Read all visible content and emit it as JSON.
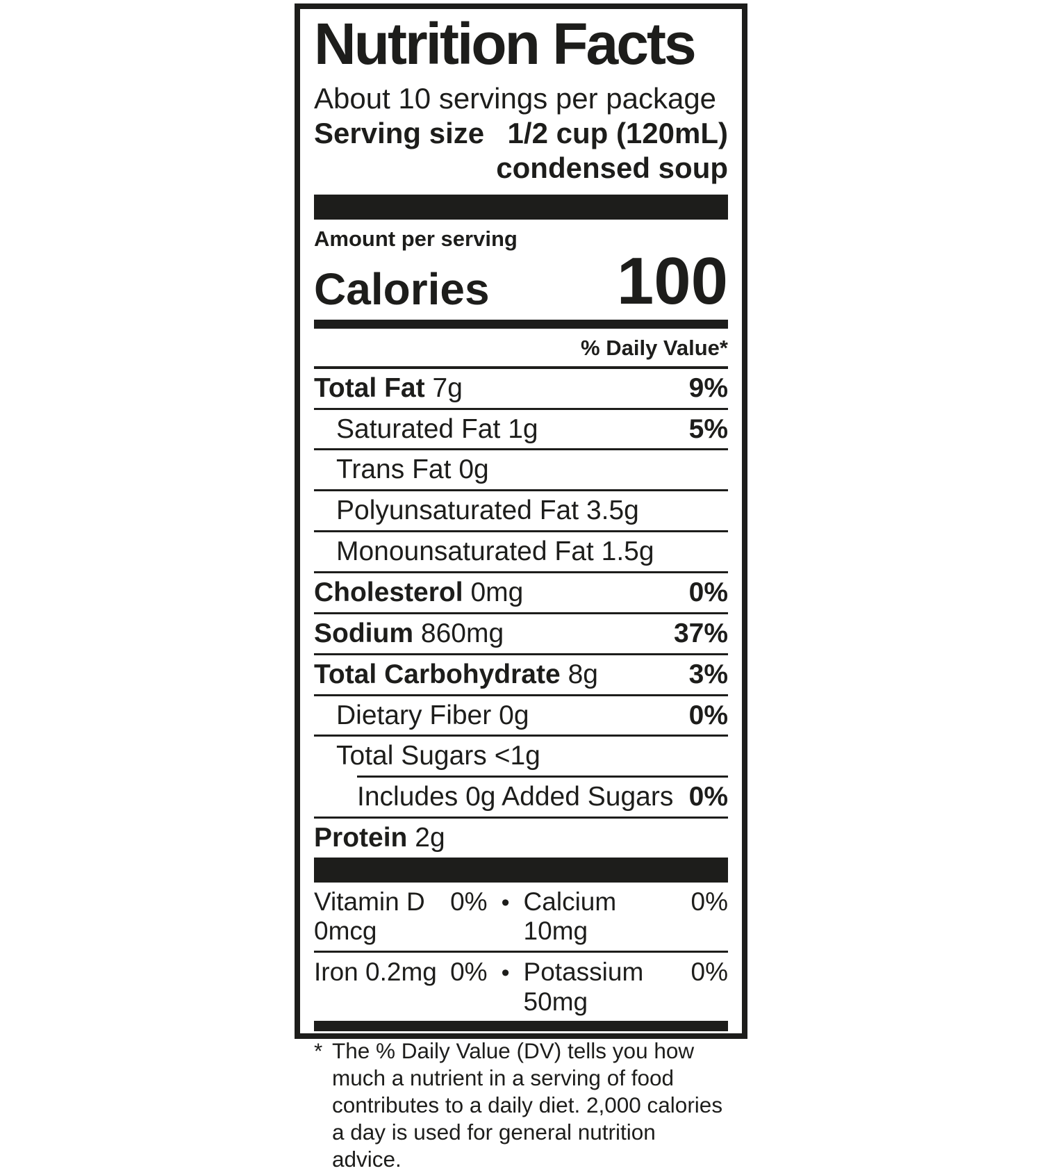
{
  "label": {
    "title": "Nutrition Facts",
    "servings_per_package": "About 10 servings per package",
    "serving_size": {
      "label": "Serving size",
      "value_line1": "1/2 cup (120mL)",
      "value_line2": "condensed soup"
    },
    "calories": {
      "context": "Amount per serving",
      "label": "Calories",
      "value": "100"
    },
    "daily_value_header": "% Daily Value*",
    "nutrients": [
      {
        "name": "Total Fat",
        "amount": "7g",
        "dv": "9%"
      },
      {
        "name": "Saturated Fat",
        "amount": "1g",
        "dv": "5%"
      },
      {
        "name": "Trans Fat",
        "amount": "0g",
        "dv": ""
      },
      {
        "name": "Polyunsaturated Fat",
        "amount": "3.5g",
        "dv": ""
      },
      {
        "name": "Monounsaturated Fat",
        "amount": "1.5g",
        "dv": ""
      },
      {
        "name": "Cholesterol",
        "amount": "0mg",
        "dv": "0%"
      },
      {
        "name": "Sodium",
        "amount": "860mg",
        "dv": "37%"
      },
      {
        "name": "Total Carbohydrate",
        "amount": "8g",
        "dv": "3%"
      },
      {
        "name": "Dietary Fiber",
        "amount": "0g",
        "dv": "0%"
      },
      {
        "name": "Total Sugars",
        "amount": "<1g",
        "dv": ""
      },
      {
        "name": "Includes 0g Added Sugars",
        "amount": "",
        "dv": "0%"
      },
      {
        "name": "Protein",
        "amount": "2g",
        "dv": ""
      }
    ],
    "micronutrients": {
      "separator": "•",
      "rows": [
        {
          "left_name": "Vitamin D 0mcg",
          "left_dv": "0%",
          "right_name": "Calcium 10mg",
          "right_dv": "0%"
        },
        {
          "left_name": "Iron 0.2mg",
          "left_dv": "0%",
          "right_name": "Potassium 50mg",
          "right_dv": "0%"
        }
      ]
    },
    "footnote": {
      "marker": "*",
      "text": "The % Daily Value (DV) tells you how much a nutrient in a serving of food contributes to a daily diet. 2,000 calories a day is used for general nutrition advice."
    },
    "colors": {
      "text": "#1d1d1b",
      "background": "#ffffff"
    }
  }
}
